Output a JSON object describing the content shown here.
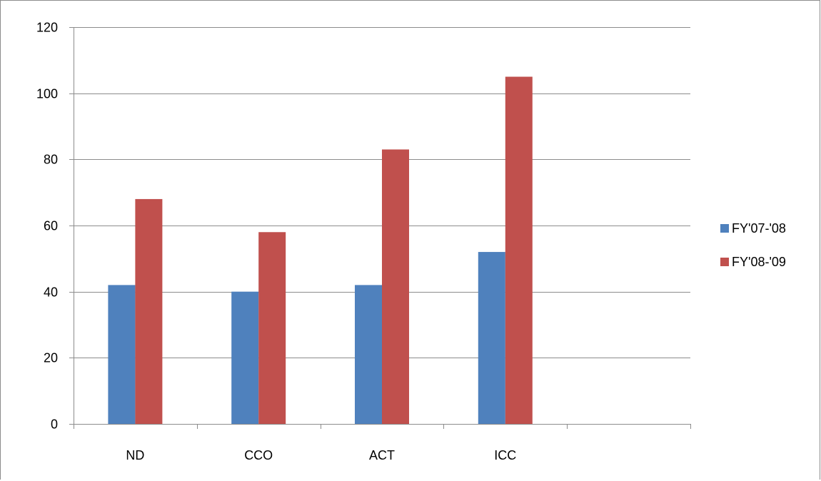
{
  "chart_data": {
    "type": "bar",
    "title": "",
    "xlabel": "",
    "ylabel": "",
    "categories": [
      "ND",
      "CCO",
      "ACT",
      "ICC",
      ""
    ],
    "series": [
      {
        "name": "FY'07-'08",
        "color": "#4f81bd",
        "values": [
          42,
          40,
          42,
          52,
          null
        ]
      },
      {
        "name": "FY'08-'09",
        "color": "#c0504d",
        "values": [
          68,
          58,
          83,
          105,
          null
        ]
      }
    ],
    "ylim": [
      0,
      120
    ],
    "yticks": [
      0,
      20,
      40,
      60,
      80,
      100,
      120
    ],
    "grid": true,
    "legend": "right"
  }
}
